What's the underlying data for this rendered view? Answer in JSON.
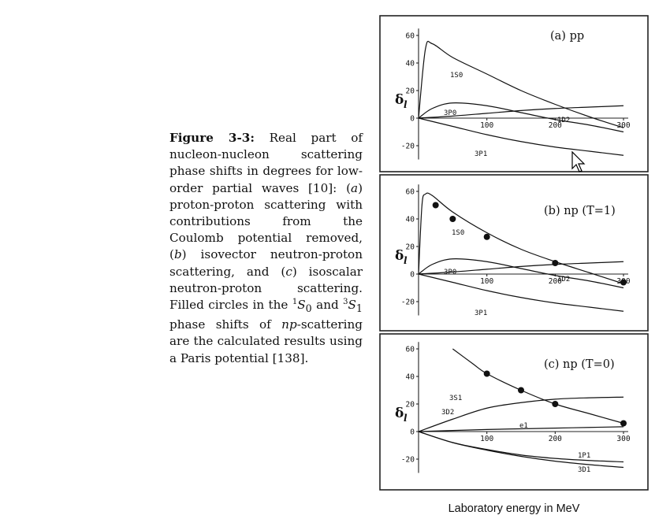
{
  "caption": {
    "label": "Figure 3-3:",
    "parts": [
      " Real part of nucleon-nucleon scattering phase shifts in degrees for low-order partial waves [10]: (",
      "a",
      ") proton-proton scattering with contributions from the Coulomb potential removed, (",
      "b",
      ") isovector neutron-proton scattering, and (",
      "c",
      ") isoscalar neutron-proton scattering. Filled circles in the ",
      "1",
      "S",
      "0",
      " and ",
      "3",
      "S",
      "1",
      " phase shifts of ",
      "np",
      "-scattering are the calculated results using a Paris potential [138]."
    ]
  },
  "xlabel_text": "Laboratory energy in MeV",
  "chart_data": [
    {
      "type": "line",
      "title": "(a)  pp",
      "ylabel": "δ",
      "ylabel_sub": "l",
      "xlim": [
        0,
        300
      ],
      "ylim": [
        -30,
        65
      ],
      "xticks": [
        100,
        200,
        300
      ],
      "yticks": [
        60,
        40,
        20,
        0,
        -20
      ],
      "series": [
        {
          "name": "1S0",
          "x": [
            0,
            10,
            20,
            50,
            100,
            150,
            200,
            250,
            300
          ],
          "y": [
            0,
            50,
            54,
            44,
            32,
            20,
            10,
            1,
            -7
          ]
        },
        {
          "name": "3P0",
          "x": [
            0,
            20,
            50,
            100,
            150,
            200,
            250,
            300
          ],
          "y": [
            0,
            7,
            11,
            9,
            4,
            -1,
            -5,
            -10
          ]
        },
        {
          "name": "1D2",
          "x": [
            0,
            50,
            100,
            150,
            200,
            250,
            300
          ],
          "y": [
            0,
            1.5,
            3.5,
            5.5,
            7,
            8,
            9
          ]
        },
        {
          "name": "3P1",
          "x": [
            0,
            50,
            100,
            150,
            200,
            250,
            300
          ],
          "y": [
            0,
            -6,
            -12,
            -17,
            -21,
            -24,
            -27
          ]
        }
      ],
      "points": []
    },
    {
      "type": "line",
      "title": "(b)  np (T=1)",
      "ylabel": "δ",
      "ylabel_sub": "l",
      "xlim": [
        0,
        300
      ],
      "ylim": [
        -30,
        65
      ],
      "xticks": [
        100,
        200,
        300
      ],
      "yticks": [
        60,
        40,
        20,
        0,
        -20
      ],
      "series": [
        {
          "name": "1S0",
          "x": [
            0,
            5,
            10,
            20,
            50,
            100,
            150,
            200,
            250,
            300
          ],
          "y": [
            0,
            50,
            58,
            57,
            45,
            30,
            18,
            9,
            1,
            -7
          ]
        },
        {
          "name": "3P0",
          "x": [
            0,
            20,
            50,
            100,
            150,
            200,
            250,
            300
          ],
          "y": [
            0,
            7,
            11,
            9,
            4,
            -1,
            -5,
            -10
          ]
        },
        {
          "name": "1D2",
          "x": [
            0,
            50,
            100,
            150,
            200,
            250,
            300
          ],
          "y": [
            0,
            1.5,
            3.5,
            5.5,
            7,
            8,
            9
          ]
        },
        {
          "name": "3P1",
          "x": [
            0,
            50,
            100,
            150,
            200,
            250,
            300
          ],
          "y": [
            0,
            -6,
            -12,
            -17,
            -21,
            -24,
            -27
          ]
        }
      ],
      "points": [
        {
          "x": 25,
          "y": 50
        },
        {
          "x": 50,
          "y": 40
        },
        {
          "x": 100,
          "y": 27
        },
        {
          "x": 200,
          "y": 8
        },
        {
          "x": 300,
          "y": -6
        }
      ]
    },
    {
      "type": "line",
      "title": "(c)  np (T=0)",
      "ylabel": "δ",
      "ylabel_sub": "l",
      "xlim": [
        0,
        300
      ],
      "ylim": [
        -30,
        65
      ],
      "xticks": [
        100,
        200,
        300
      ],
      "yticks": [
        60,
        40,
        20,
        0,
        -20
      ],
      "series": [
        {
          "name": "3S1",
          "x": [
            50,
            80,
            100,
            150,
            200,
            250,
            300
          ],
          "y": [
            60,
            49,
            42,
            30,
            20,
            13,
            6
          ]
        },
        {
          "name": "3D2",
          "x": [
            0,
            50,
            100,
            150,
            200,
            250,
            300
          ],
          "y": [
            0,
            9,
            17,
            21,
            23.5,
            24.5,
            25
          ]
        },
        {
          "name": "e1",
          "x": [
            0,
            50,
            100,
            150,
            200,
            250,
            300
          ],
          "y": [
            0,
            0.8,
            1.5,
            2,
            2.5,
            3,
            3.5
          ]
        },
        {
          "name": "1P1",
          "x": [
            0,
            50,
            100,
            150,
            200,
            250,
            300
          ],
          "y": [
            0,
            -8,
            -13,
            -17,
            -19.5,
            -21,
            -22
          ]
        },
        {
          "name": "3D1",
          "x": [
            0,
            50,
            100,
            150,
            200,
            250,
            300
          ],
          "y": [
            0,
            -8,
            -13.5,
            -18,
            -21.5,
            -24,
            -26
          ]
        }
      ],
      "points": [
        {
          "x": 100,
          "y": 42
        },
        {
          "x": 150,
          "y": 30
        },
        {
          "x": 200,
          "y": 20
        },
        {
          "x": 300,
          "y": 6
        }
      ]
    }
  ]
}
